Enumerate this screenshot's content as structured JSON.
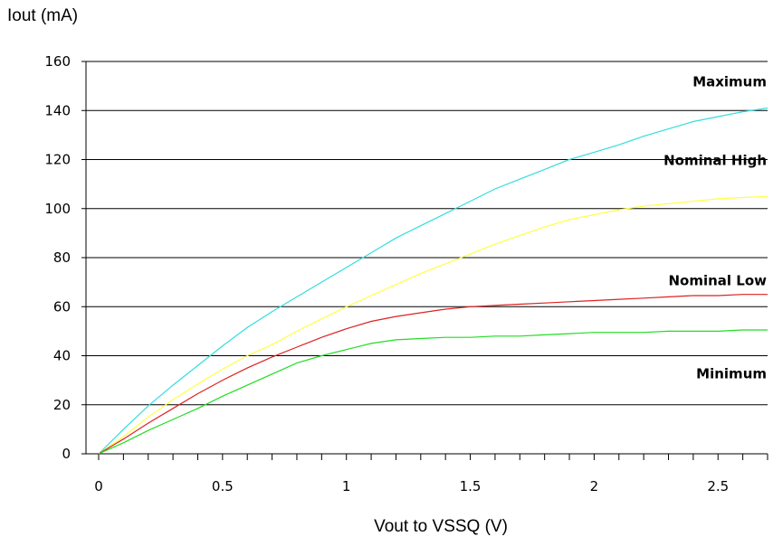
{
  "chart_data": {
    "type": "line",
    "title": "",
    "ylabel": "Iout (mA)",
    "xlabel": "Vout to VSSQ (V)",
    "xlim": [
      0,
      2.7
    ],
    "ylim": [
      0,
      160
    ],
    "x_ticks": [
      0,
      0.5,
      1,
      1.5,
      2,
      2.5
    ],
    "x_tick_labels": [
      "0",
      "0.5",
      "1",
      "1.5",
      "2",
      "2.5"
    ],
    "x_minor_step": 0.1,
    "y_ticks": [
      0,
      20,
      40,
      60,
      80,
      100,
      120,
      140,
      160
    ],
    "y_tick_labels": [
      "0",
      "20",
      "40",
      "60",
      "80",
      "100",
      "120",
      "140",
      "160"
    ],
    "grid": "horizontal",
    "x": [
      0,
      0.1,
      0.2,
      0.3,
      0.4,
      0.5,
      0.6,
      0.7,
      0.8,
      0.9,
      1.0,
      1.1,
      1.2,
      1.3,
      1.4,
      1.5,
      1.6,
      1.7,
      1.8,
      1.9,
      2.0,
      2.1,
      2.2,
      2.3,
      2.4,
      2.5,
      2.6,
      2.7
    ],
    "series": [
      {
        "name": "Maximum",
        "color": "#33dddd",
        "values": [
          0,
          10,
          19.5,
          28,
          36,
          44,
          51.5,
          58,
          64,
          70,
          76,
          82,
          88,
          93,
          98,
          103,
          108,
          112,
          116,
          120,
          123,
          126,
          129.5,
          132.5,
          135.5,
          137.5,
          139.5,
          141
        ]
      },
      {
        "name": "Nominal High",
        "color": "#ffff44",
        "values": [
          0,
          7,
          15,
          22,
          28.5,
          34.5,
          40,
          44.5,
          50,
          55,
          60,
          64.5,
          69,
          73.5,
          77.5,
          81.5,
          85.5,
          89,
          92.5,
          95.5,
          97.5,
          99.5,
          101,
          102,
          103,
          104,
          104.5,
          105
        ]
      },
      {
        "name": "Nominal Low",
        "color": "#dd2222",
        "values": [
          0,
          6,
          12.5,
          18.5,
          24.5,
          30,
          35,
          39.5,
          43.5,
          47.5,
          51,
          54,
          56,
          57.5,
          59,
          60,
          60.5,
          61,
          61.5,
          62,
          62.5,
          63,
          63.5,
          64,
          64.5,
          64.5,
          65,
          65
        ]
      },
      {
        "name": "Minimum",
        "color": "#22dd22",
        "values": [
          0,
          4.5,
          9.5,
          14,
          18.5,
          23.5,
          28,
          32.5,
          37,
          40,
          42.5,
          45,
          46.5,
          47,
          47.5,
          47.5,
          48,
          48,
          48.5,
          49,
          49.5,
          49.5,
          49.5,
          50,
          50,
          50,
          50.5,
          50.5
        ]
      }
    ]
  }
}
